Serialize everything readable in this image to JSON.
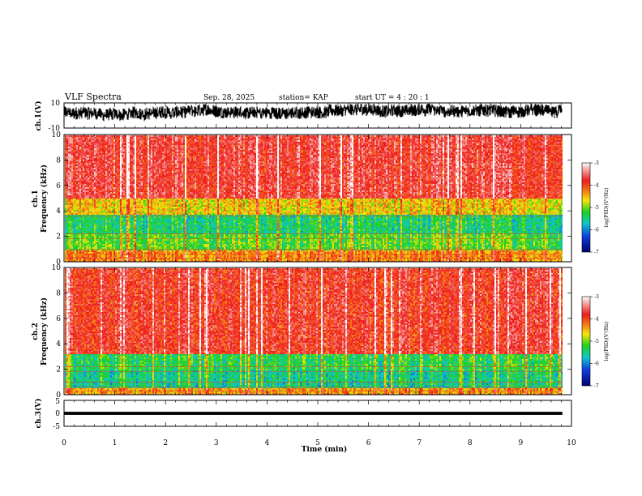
{
  "header": {
    "title": "VLF Spectra",
    "date": "Sep. 28, 2025",
    "station": "station= KAP",
    "start": "start  UT =   4 : 20 : 1"
  },
  "chart_data": [
    {
      "type": "line",
      "name": "ch1-waveform",
      "ylabel": "ch.1(V)",
      "ylim": [
        -10,
        10
      ],
      "ytick_labels": [
        "10",
        "-10"
      ],
      "x_range_min": [
        0,
        9.82
      ],
      "y_center_approx": 2,
      "y_amplitude_approx": 5
    },
    {
      "type": "heatmap",
      "name": "ch1-spectrogram",
      "ylabel": "Frequency (kHz)",
      "channel_label": "ch.1",
      "ylim": [
        0,
        10
      ],
      "ytick_labels": [
        "0",
        "2",
        "4",
        "6",
        "8",
        "10"
      ],
      "x_range_min": [
        0,
        9.82
      ],
      "color_scale": {
        "label": "log(PSD)(V²/Hz)",
        "range": [
          -7,
          -3
        ],
        "tick_labels": [
          "-3",
          "-4",
          "-5",
          "-6",
          "-7"
        ]
      },
      "bands": [
        {
          "from_khz": 0,
          "to_khz": 1,
          "level": -4.3
        },
        {
          "from_khz": 1,
          "to_khz": 2.2,
          "level": -5.1
        },
        {
          "from_khz": 2.2,
          "to_khz": 3.8,
          "level": -5.4
        },
        {
          "from_khz": 3.8,
          "to_khz": 5,
          "level": -4.6
        },
        {
          "from_khz": 5,
          "to_khz": 10,
          "level": -3.7
        }
      ]
    },
    {
      "type": "heatmap",
      "name": "ch2-spectrogram",
      "ylabel": "Frequency (kHz)",
      "channel_label": "ch.2",
      "ylim": [
        0,
        10
      ],
      "ytick_labels": [
        "0",
        "2",
        "4",
        "6",
        "8",
        "10"
      ],
      "x_range_min": [
        0,
        9.82
      ],
      "color_scale": {
        "label": "log(PSD)(V²/Hz)",
        "range": [
          -7,
          -3
        ],
        "tick_labels": [
          "-3",
          "-4",
          "-5",
          "-6",
          "-7"
        ]
      },
      "bands": [
        {
          "from_khz": 0,
          "to_khz": 0.6,
          "level": -4.4
        },
        {
          "from_khz": 0.6,
          "to_khz": 2,
          "level": -5.5
        },
        {
          "from_khz": 2,
          "to_khz": 3.2,
          "level": -5.3
        },
        {
          "from_khz": 3.2,
          "to_khz": 10,
          "level": -3.8
        }
      ]
    },
    {
      "type": "line",
      "name": "ch3-waveform",
      "ylabel": "ch.3(V)",
      "ylim": [
        -5,
        5
      ],
      "ytick_labels": [
        "5",
        "0",
        "-5"
      ],
      "x_range_min": [
        0,
        9.82
      ],
      "y_center_approx": 0,
      "y_amplitude_approx": 0.6
    }
  ],
  "x_axis": {
    "label": "Time (min)",
    "range": [
      0,
      10
    ],
    "tick_labels": [
      "0",
      "1",
      "2",
      "3",
      "4",
      "5",
      "6",
      "7",
      "8",
      "9",
      "10"
    ]
  },
  "colors": {
    "high": "#ee1c1c",
    "mid": "#f5e60a",
    "low": "#20d020",
    "lowest": "#000080"
  }
}
